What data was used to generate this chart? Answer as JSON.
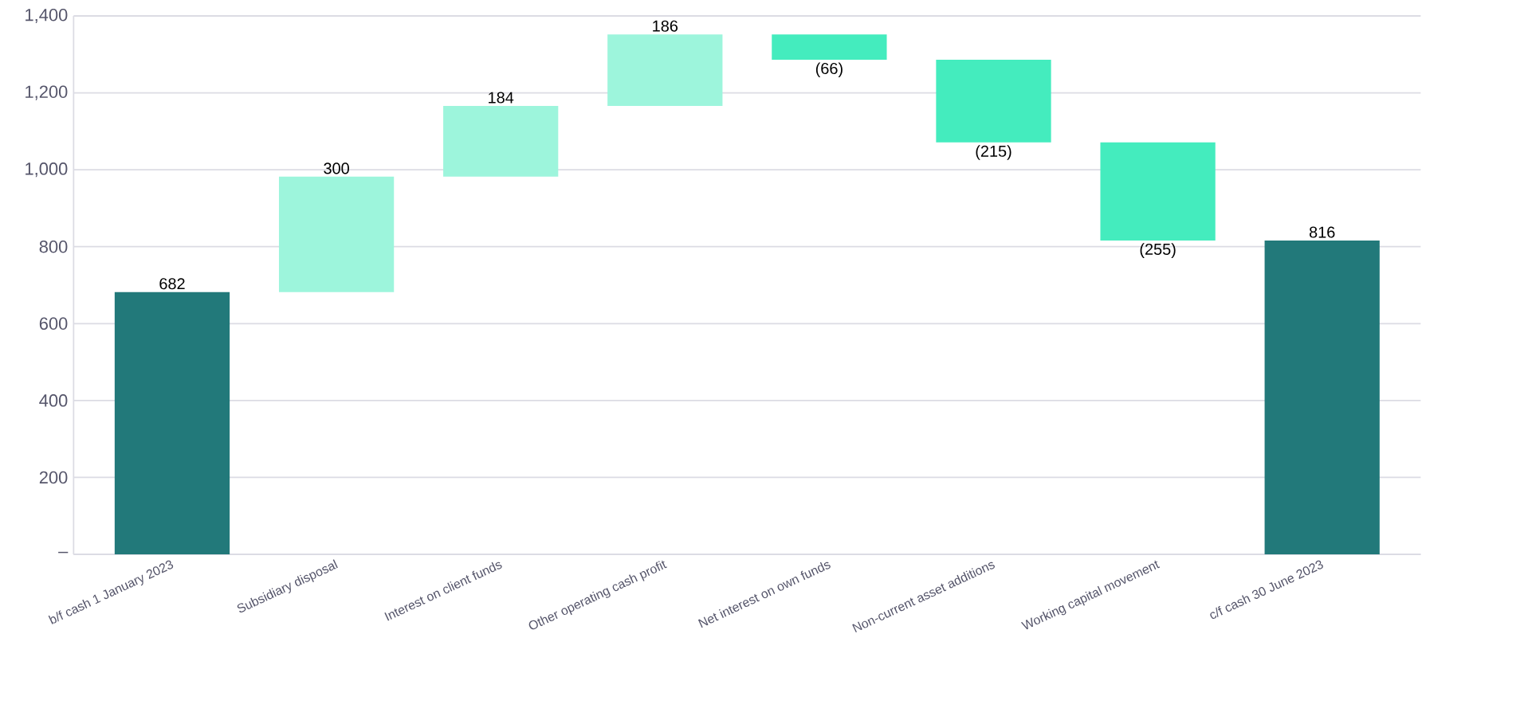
{
  "chart_data": {
    "type": "bar",
    "categories": [
      "b/f cash 1 January 2023",
      "Subsidiary disposal",
      "Interest on client funds",
      "Other operating cash profit",
      "Net interest on own funds",
      "Non-current asset additions",
      "Working capital movement",
      "c/f cash 30 June 2023"
    ],
    "values": [
      682,
      300,
      184,
      186,
      -66,
      -215,
      -255,
      816
    ],
    "base": [
      0,
      682,
      982,
      1166,
      1352,
      1286,
      1071,
      0
    ],
    "colors": [
      "#22797a",
      "#9df5dc",
      "#9df5dc",
      "#9df5dc",
      "#44ecbe",
      "#44ecbe",
      "#44ecbe",
      "#22797a"
    ],
    "value_labels": [
      "682",
      "300",
      "184",
      "186",
      "(66)",
      "(215)",
      "(255)",
      "816"
    ],
    "ylim": [
      0,
      1400
    ],
    "yticks": [
      {
        "value": 0,
        "label": "–"
      },
      200,
      400,
      600,
      800,
      {
        "value": 1000,
        "label": "1,000"
      },
      {
        "value": 1200,
        "label": "1,200"
      },
      {
        "value": 1400,
        "label": "1,400"
      }
    ],
    "grid": "y"
  }
}
